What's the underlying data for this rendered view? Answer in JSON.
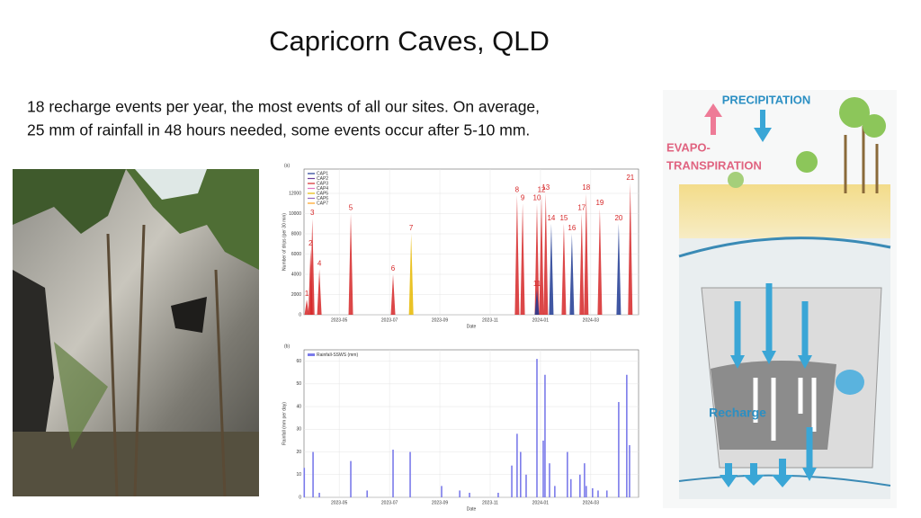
{
  "title": "Capricorn Caves, QLD",
  "body": [
    "18 recharge events per year, the most events of all our sites. On average,",
    "25 mm of rainfall in 48 hours needed, some events occur after 5-10 mm."
  ],
  "diagram": {
    "labels": [
      "PRECIPITATION",
      "EVAPO-",
      "TRANSPIRATION",
      "Recharge"
    ]
  },
  "chart_data": [
    {
      "type": "line",
      "panel": "(a)",
      "xlabel": "Date",
      "ylabel": "Number of drips (per 30 min)",
      "legend": [
        {
          "name": "CAP1",
          "color": "#1f3a93"
        },
        {
          "name": "CAP2",
          "color": "#6a3d9a"
        },
        {
          "name": "CAP3",
          "color": "#d62728"
        },
        {
          "name": "CAP4",
          "color": "#e377c2"
        },
        {
          "name": "CAP5",
          "color": "#e6b800"
        },
        {
          "name": "CAP6",
          "color": "#9467bd"
        },
        {
          "name": "CAP7",
          "color": "#ff9f1c"
        }
      ],
      "xlim": [
        3.6,
        16.9
      ],
      "xticks": [
        {
          "value": 5,
          "label": "2023-05"
        },
        {
          "value": 7,
          "label": "2023-07"
        },
        {
          "value": 9,
          "label": "2023-09"
        },
        {
          "value": 11,
          "label": "2023-11"
        },
        {
          "value": 13,
          "label": "2024-01"
        },
        {
          "value": 15,
          "label": "2024-03"
        }
      ],
      "ylim": [
        0,
        14400
      ],
      "yticks": [
        0,
        2000,
        4000,
        6000,
        8000,
        10000,
        12000
      ],
      "events": [
        {
          "label": "1",
          "x": 3.71,
          "value": 1500,
          "color": "#d62728"
        },
        {
          "label": "2",
          "x": 3.86,
          "value": 6500,
          "color": "#d62728"
        },
        {
          "label": "3",
          "x": 3.93,
          "value": 9500,
          "color": "#d62728"
        },
        {
          "label": "4",
          "x": 4.21,
          "value": 4500,
          "color": "#d62728"
        },
        {
          "label": "5",
          "x": 5.46,
          "value": 10000,
          "color": "#d62728"
        },
        {
          "label": "6",
          "x": 7.14,
          "value": 4000,
          "color": "#d62728"
        },
        {
          "label": "7",
          "x": 7.86,
          "value": 8000,
          "color": "#e6b800"
        },
        {
          "label": "8",
          "x": 12.07,
          "value": 11800,
          "color": "#d62728"
        },
        {
          "label": "9",
          "x": 12.29,
          "value": 11000,
          "color": "#d62728"
        },
        {
          "label": "10",
          "x": 12.86,
          "value": 11000,
          "color": "#d62728"
        },
        {
          "label": "11",
          "x": 12.86,
          "value": 2500,
          "color": "#1f3a93"
        },
        {
          "label": "12",
          "x": 13.04,
          "value": 11800,
          "color": "#d62728"
        },
        {
          "label": "13",
          "x": 13.21,
          "value": 12000,
          "color": "#d62728"
        },
        {
          "label": "14",
          "x": 13.43,
          "value": 9000,
          "color": "#1f3a93"
        },
        {
          "label": "15",
          "x": 13.93,
          "value": 9000,
          "color": "#d62728"
        },
        {
          "label": "16",
          "x": 14.25,
          "value": 8000,
          "color": "#1f3a93"
        },
        {
          "label": "17",
          "x": 14.64,
          "value": 10000,
          "color": "#d62728"
        },
        {
          "label": "18",
          "x": 14.82,
          "value": 12000,
          "color": "#d62728"
        },
        {
          "label": "19",
          "x": 15.36,
          "value": 10500,
          "color": "#d62728"
        },
        {
          "label": "20",
          "x": 16.11,
          "value": 9000,
          "color": "#1f3a93"
        },
        {
          "label": "21",
          "x": 16.57,
          "value": 13000,
          "color": "#d62728"
        }
      ]
    },
    {
      "type": "bar",
      "panel": "(b)",
      "xlabel": "Date",
      "ylabel": "Rainfall (mm per day)",
      "legend": "Rainfall-SSWS (mm)",
      "color": "#7b7bea",
      "xlim": [
        3.6,
        16.9
      ],
      "xticks": [
        {
          "value": 5,
          "label": "2023-05"
        },
        {
          "value": 7,
          "label": "2023-07"
        },
        {
          "value": 9,
          "label": "2023-09"
        },
        {
          "value": 11,
          "label": "2023-11"
        },
        {
          "value": 13,
          "label": "2024-01"
        },
        {
          "value": 15,
          "label": "2024-03"
        }
      ],
      "ylim": [
        0,
        65
      ],
      "yticks": [
        0,
        10,
        20,
        30,
        40,
        50,
        60
      ],
      "x": [
        3.61,
        3.96,
        4.21,
        5.46,
        6.11,
        7.14,
        7.82,
        9.07,
        9.79,
        10.18,
        11.32,
        11.86,
        12.07,
        12.21,
        12.43,
        12.86,
        13.11,
        13.18,
        13.36,
        13.57,
        14.07,
        14.21,
        14.57,
        14.75,
        14.82,
        15.07,
        15.29,
        15.64,
        16.11,
        16.43,
        16.54
      ],
      "values": [
        13,
        20,
        2,
        16,
        3,
        21,
        20,
        5,
        3,
        2,
        2,
        14,
        28,
        20,
        10,
        61,
        25,
        54,
        15,
        5,
        20,
        8,
        10,
        15,
        5,
        4,
        3,
        3,
        42,
        54,
        23
      ]
    }
  ]
}
